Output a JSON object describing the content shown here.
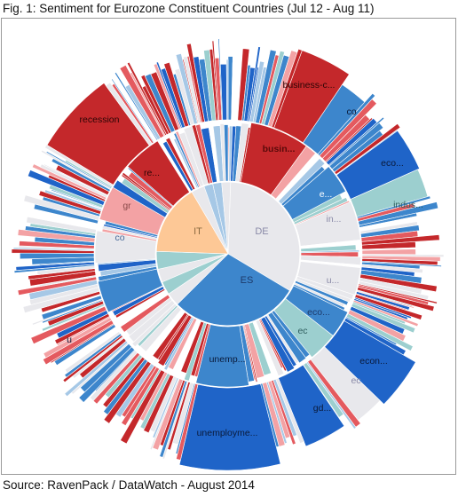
{
  "title": "Fig. 1: Sentiment for Eurozone Constituent Countries (Jul 12 - Aug 11)",
  "source": "Source: RavenPack / DataWatch - August 2014",
  "chart_data": {
    "type": "sunburst",
    "title": "Fig. 1: Sentiment for Eurozone Constituent Countries (Jul 12 - Aug 11)",
    "colors": {
      "strong_negative": "#c4282b",
      "negative": "#e45a5f",
      "mild_negative": "#f3a2a4",
      "neutral": "#e8e8ec",
      "mild_positive": "#a6c8e6",
      "positive": "#3d86cc",
      "strong_positive": "#1f64c8",
      "teal": "#9ccfcf",
      "peach": "#fdc896"
    },
    "rings": [
      {
        "level": "country",
        "segments": [
          {
            "label": "DE",
            "share": 0.33,
            "sentiment": "neutral"
          },
          {
            "label": "ES",
            "share": 0.29,
            "sentiment": "positive"
          },
          {
            "label": "",
            "share": 0.03,
            "sentiment": "neutral"
          },
          {
            "label": "",
            "share": 0.03,
            "sentiment": "teal"
          },
          {
            "label": "",
            "share": 0.03,
            "sentiment": "neutral"
          },
          {
            "label": "",
            "share": 0.04,
            "sentiment": "teal"
          },
          {
            "label": "IT",
            "share": 0.16,
            "sentiment": "peach"
          },
          {
            "label": "",
            "share": 0.03,
            "sentiment": "neutral"
          },
          {
            "label": "",
            "share": 0.02,
            "sentiment": "mild_positive"
          },
          {
            "label": "",
            "share": 0.02,
            "sentiment": "mild_positive"
          },
          {
            "label": "",
            "share": 0.02,
            "sentiment": "neutral"
          }
        ]
      },
      {
        "level": "topic_group",
        "segments": [
          {
            "label": "busin...",
            "sentiment": "strong_negative"
          },
          {
            "label": "e...",
            "sentiment": "positive"
          },
          {
            "label": "in...",
            "sentiment": "neutral"
          },
          {
            "label": "u...",
            "sentiment": "neutral"
          },
          {
            "label": "eco...",
            "sentiment": "positive"
          },
          {
            "label": "ec",
            "sentiment": "teal"
          },
          {
            "label": "unemp...",
            "sentiment": "positive"
          },
          {
            "label": "u",
            "sentiment": "positive"
          },
          {
            "label": "co",
            "sentiment": "neutral"
          },
          {
            "label": "gr",
            "sentiment": "mild_negative"
          },
          {
            "label": "re...",
            "sentiment": "strong_negative"
          }
        ]
      },
      {
        "level": "topic",
        "segments": [
          {
            "label": "business-c...",
            "sentiment": "strong_negative"
          },
          {
            "label": "co",
            "sentiment": "positive"
          },
          {
            "label": "eco...",
            "sentiment": "strong_positive"
          },
          {
            "label": "indus...",
            "sentiment": "teal"
          },
          {
            "label": "econ...",
            "sentiment": "strong_positive"
          },
          {
            "label": "ec",
            "sentiment": "neutral"
          },
          {
            "label": "gd...",
            "sentiment": "strong_positive"
          },
          {
            "label": "unemployme...",
            "sentiment": "strong_positive"
          },
          {
            "label": "recession",
            "sentiment": "strong_negative"
          }
        ]
      }
    ]
  }
}
